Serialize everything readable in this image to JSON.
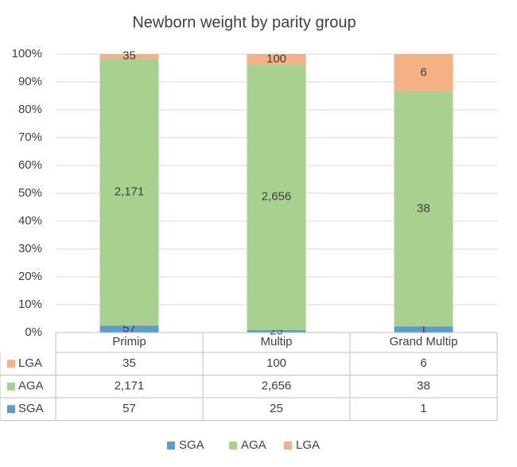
{
  "chart_data": {
    "type": "bar",
    "stacked": "percent",
    "title": "Newborn weight by parity group",
    "categories": [
      "Primip",
      "Multip",
      "Grand Multip"
    ],
    "series": [
      {
        "name": "SGA",
        "color": "#5b9bd5",
        "values": [
          57,
          25,
          1
        ]
      },
      {
        "name": "AGA",
        "color": "#a9d18e",
        "values": [
          2171,
          2656,
          38
        ],
        "value_labels": [
          "2,171",
          "2,656",
          "38"
        ]
      },
      {
        "name": "LGA",
        "color": "#f4b183",
        "values": [
          35,
          100,
          6
        ]
      }
    ],
    "ylim": [
      0,
      100
    ],
    "yticks": [
      {
        "value": 0,
        "label": "0%"
      },
      {
        "value": 10,
        "label": "10%"
      },
      {
        "value": 20,
        "label": "20%"
      },
      {
        "value": 30,
        "label": "30%"
      },
      {
        "value": 40,
        "label": "40%"
      },
      {
        "value": 50,
        "label": "50%"
      },
      {
        "value": 60,
        "label": "60%"
      },
      {
        "value": 70,
        "label": "70%"
      },
      {
        "value": 80,
        "label": "80%"
      },
      {
        "value": 90,
        "label": "90%"
      },
      {
        "value": 100,
        "label": "100%"
      }
    ],
    "grid": true,
    "data_table": true,
    "legend": "bottom"
  }
}
